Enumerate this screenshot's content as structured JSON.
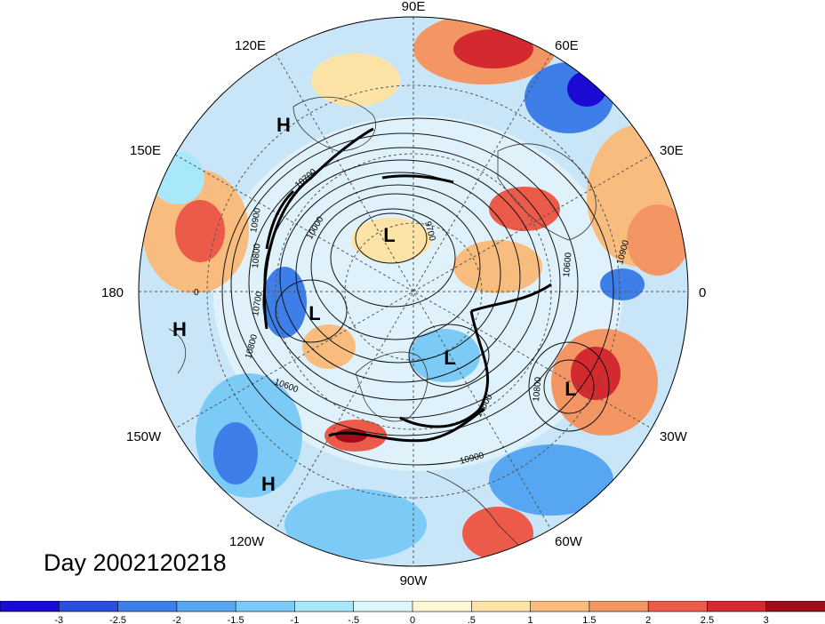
{
  "longitude_labels": {
    "deg90E": "90E",
    "deg60E": "60E",
    "deg120E": "120E",
    "deg30E": "30E",
    "deg150E": "150E",
    "deg0": "0",
    "deg180": "180",
    "deg30W": "30W",
    "deg150W": "150W",
    "deg60W": "60W",
    "deg120W": "120W",
    "deg90W": "90W"
  },
  "pressure_systems": {
    "h_east_asia": "H",
    "h_dateline": "H",
    "h_pacific": "H",
    "l_siberia": "L",
    "l_alaska": "L",
    "l_canada": "L",
    "l_atlantic": "L"
  },
  "contour_labels": {
    "c1": "10700",
    "c2": "10900",
    "c3": "10800",
    "c4": "10000",
    "c5": "9700",
    "c6": "10600",
    "c7": "10900",
    "c8": "10700",
    "c9": "10800",
    "c10": "10600",
    "c11": "10800",
    "c12": "10900",
    "c13": "10600",
    "c14": "0"
  },
  "title": "Day 2002120218",
  "colorbar": {
    "colors": [
      "#1a0ad4",
      "#2a4fdf",
      "#3d7ee8",
      "#57a6f2",
      "#7ccbf7",
      "#a9e7fb",
      "#dcf6fb",
      "#fdf7d6",
      "#fde4a6",
      "#f8bd7e",
      "#f39663",
      "#ec5b4a",
      "#d42a2f",
      "#a10c1a"
    ],
    "tick_labels": [
      "-3",
      "-2.5",
      "-2",
      "-1.5",
      "-1",
      "-.5",
      "0",
      ".5",
      "1",
      "1.5",
      "2",
      "2.5",
      "3"
    ]
  },
  "colors": {
    "cold_strong": "#2f5fe0",
    "cold_mid": "#78b6f0",
    "cold_light": "#bfe4fa",
    "warm_light": "#fbe3b2",
    "warm_mid": "#f4926a",
    "warm_strong": "#d4262c"
  }
}
